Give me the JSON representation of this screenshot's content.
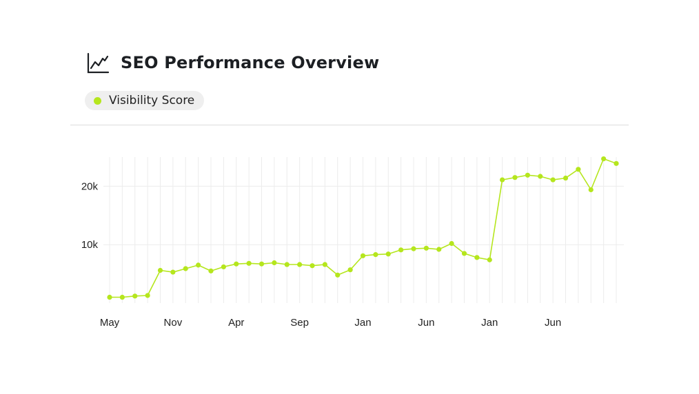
{
  "header": {
    "title": "SEO Performance Overview",
    "icon": "line-chart-icon"
  },
  "legend": {
    "label": "Visibility Score",
    "color": "#b5e61d"
  },
  "chart_data": {
    "type": "line",
    "series": [
      {
        "name": "Visibility Score",
        "color": "#b5e61d",
        "values": [
          1000,
          1000,
          1200,
          1300,
          5600,
          5300,
          5900,
          6500,
          5500,
          6200,
          6700,
          6800,
          6700,
          6900,
          6600,
          6600,
          6400,
          6600,
          4800,
          5700,
          8100,
          8300,
          8400,
          9100,
          9300,
          9400,
          9200,
          10200,
          8500,
          7800,
          7400,
          21100,
          21500,
          21900,
          21700,
          21100,
          21400,
          22900,
          19400,
          24700,
          23900
        ]
      }
    ],
    "x_tick_labels": [
      "May",
      "Nov",
      "Apr",
      "Sep",
      "Jan",
      "Jun",
      "Jan",
      "Jun"
    ],
    "y_tick_labels": [
      "10k",
      "20k"
    ],
    "y_ticks": [
      10000,
      20000
    ],
    "ylim": [
      0,
      25000
    ],
    "grid": true
  }
}
